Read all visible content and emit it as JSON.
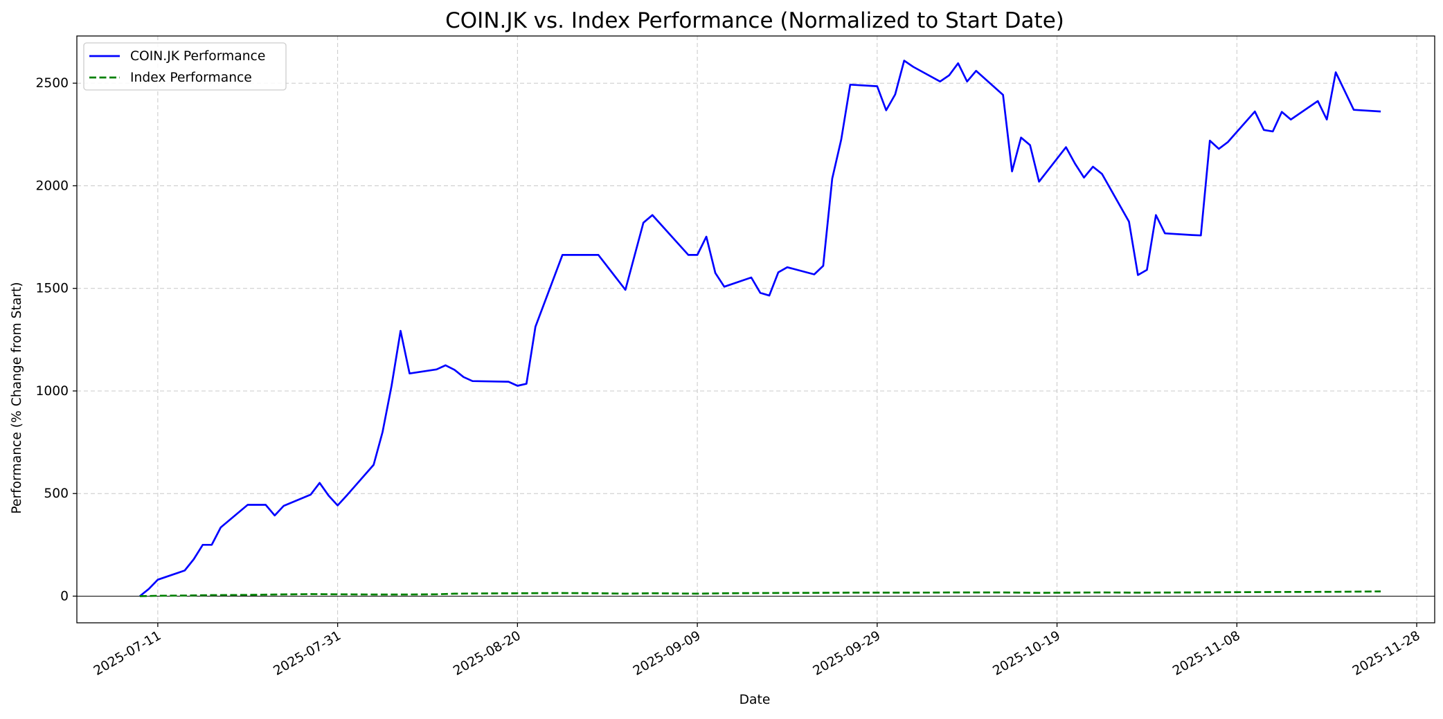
{
  "chart_data": {
    "type": "line",
    "title": "COIN.JK vs. Index Performance (Normalized to Start Date)",
    "xlabel": "Date",
    "ylabel": "Performance (% Change from Start)",
    "xlim": [
      "2025-07-02",
      "2025-11-30"
    ],
    "ylim": [
      -130,
      2730
    ],
    "grid": true,
    "legend": "top-left",
    "x_ticks": [
      "2025-07-11",
      "2025-07-31",
      "2025-08-20",
      "2025-09-09",
      "2025-09-29",
      "2025-10-19",
      "2025-11-08",
      "2025-11-28"
    ],
    "y_ticks": [
      0,
      500,
      1000,
      1500,
      2000,
      2500
    ],
    "y_tick_labels": [
      "0",
      "500",
      "1000",
      "1500",
      "2000",
      "2500"
    ],
    "series": [
      {
        "name": "COIN.JK Performance",
        "color": "#0000ff",
        "style": "solid",
        "points": [
          [
            "2025-07-09",
            0
          ],
          [
            "2025-07-10",
            35
          ],
          [
            "2025-07-11",
            80
          ],
          [
            "2025-07-14",
            125
          ],
          [
            "2025-07-15",
            180
          ],
          [
            "2025-07-16",
            250
          ],
          [
            "2025-07-17",
            250
          ],
          [
            "2025-07-18",
            335
          ],
          [
            "2025-07-21",
            445
          ],
          [
            "2025-07-23",
            445
          ],
          [
            "2025-07-24",
            393
          ],
          [
            "2025-07-25",
            440
          ],
          [
            "2025-07-28",
            495
          ],
          [
            "2025-07-29",
            552
          ],
          [
            "2025-07-30",
            490
          ],
          [
            "2025-07-31",
            442
          ],
          [
            "2025-08-01",
            490
          ],
          [
            "2025-08-04",
            640
          ],
          [
            "2025-08-05",
            800
          ],
          [
            "2025-08-06",
            1025
          ],
          [
            "2025-08-07",
            1293
          ],
          [
            "2025-08-08",
            1085
          ],
          [
            "2025-08-11",
            1105
          ],
          [
            "2025-08-12",
            1125
          ],
          [
            "2025-08-13",
            1103
          ],
          [
            "2025-08-14",
            1068
          ],
          [
            "2025-08-15",
            1048
          ],
          [
            "2025-08-19",
            1045
          ],
          [
            "2025-08-20",
            1025
          ],
          [
            "2025-08-21",
            1035
          ],
          [
            "2025-08-22",
            1313
          ],
          [
            "2025-08-25",
            1663
          ],
          [
            "2025-08-29",
            1663
          ],
          [
            "2025-09-01",
            1493
          ],
          [
            "2025-09-03",
            1820
          ],
          [
            "2025-09-04",
            1857
          ],
          [
            "2025-09-08",
            1663
          ],
          [
            "2025-09-09",
            1663
          ],
          [
            "2025-09-10",
            1752
          ],
          [
            "2025-09-11",
            1575
          ],
          [
            "2025-09-12",
            1508
          ],
          [
            "2025-09-15",
            1553
          ],
          [
            "2025-09-16",
            1478
          ],
          [
            "2025-09-17",
            1465
          ],
          [
            "2025-09-18",
            1578
          ],
          [
            "2025-09-19",
            1603
          ],
          [
            "2025-09-22",
            1568
          ],
          [
            "2025-09-23",
            1610
          ],
          [
            "2025-09-24",
            2035
          ],
          [
            "2025-09-25",
            2225
          ],
          [
            "2025-09-26",
            2493
          ],
          [
            "2025-09-29",
            2485
          ],
          [
            "2025-09-30",
            2368
          ],
          [
            "2025-10-01",
            2445
          ],
          [
            "2025-10-02",
            2610
          ],
          [
            "2025-10-03",
            2580
          ],
          [
            "2025-10-06",
            2508
          ],
          [
            "2025-10-07",
            2538
          ],
          [
            "2025-10-08",
            2597
          ],
          [
            "2025-10-09",
            2508
          ],
          [
            "2025-10-10",
            2560
          ],
          [
            "2025-10-13",
            2443
          ],
          [
            "2025-10-14",
            2070
          ],
          [
            "2025-10-15",
            2235
          ],
          [
            "2025-10-16",
            2198
          ],
          [
            "2025-10-17",
            2020
          ],
          [
            "2025-10-20",
            2188
          ],
          [
            "2025-10-21",
            2108
          ],
          [
            "2025-10-22",
            2040
          ],
          [
            "2025-10-23",
            2093
          ],
          [
            "2025-10-24",
            2058
          ],
          [
            "2025-10-27",
            1825
          ],
          [
            "2025-10-28",
            1565
          ],
          [
            "2025-10-29",
            1590
          ],
          [
            "2025-10-30",
            1857
          ],
          [
            "2025-10-31",
            1768
          ],
          [
            "2025-11-03",
            1760
          ],
          [
            "2025-11-04",
            1758
          ],
          [
            "2025-11-05",
            2220
          ],
          [
            "2025-11-06",
            2180
          ],
          [
            "2025-11-07",
            2213
          ],
          [
            "2025-11-10",
            2362
          ],
          [
            "2025-11-11",
            2272
          ],
          [
            "2025-11-12",
            2265
          ],
          [
            "2025-11-13",
            2360
          ],
          [
            "2025-11-14",
            2323
          ],
          [
            "2025-11-17",
            2413
          ],
          [
            "2025-11-18",
            2323
          ],
          [
            "2025-11-19",
            2553
          ],
          [
            "2025-11-21",
            2370
          ],
          [
            "2025-11-24",
            2362
          ]
        ]
      },
      {
        "name": "Index Performance",
        "color": "#008000",
        "style": "dashed",
        "points": [
          [
            "2025-07-09",
            0
          ],
          [
            "2025-07-11",
            2
          ],
          [
            "2025-07-14",
            3
          ],
          [
            "2025-07-17",
            5
          ],
          [
            "2025-07-21",
            6
          ],
          [
            "2025-07-24",
            8
          ],
          [
            "2025-07-28",
            10
          ],
          [
            "2025-07-31",
            9
          ],
          [
            "2025-08-04",
            8
          ],
          [
            "2025-08-08",
            8
          ],
          [
            "2025-08-11",
            9
          ],
          [
            "2025-08-13",
            12
          ],
          [
            "2025-08-15",
            13
          ],
          [
            "2025-08-20",
            14
          ],
          [
            "2025-08-25",
            15
          ],
          [
            "2025-08-29",
            14
          ],
          [
            "2025-09-01",
            12
          ],
          [
            "2025-09-04",
            14
          ],
          [
            "2025-09-09",
            12
          ],
          [
            "2025-09-12",
            14
          ],
          [
            "2025-09-16",
            15
          ],
          [
            "2025-09-22",
            16
          ],
          [
            "2025-09-26",
            17
          ],
          [
            "2025-09-29",
            17
          ],
          [
            "2025-10-03",
            17
          ],
          [
            "2025-10-08",
            18
          ],
          [
            "2025-10-13",
            18
          ],
          [
            "2025-10-17",
            16
          ],
          [
            "2025-10-20",
            17
          ],
          [
            "2025-10-24",
            18
          ],
          [
            "2025-10-28",
            17
          ],
          [
            "2025-11-03",
            18
          ],
          [
            "2025-11-07",
            19
          ],
          [
            "2025-11-12",
            20
          ],
          [
            "2025-11-19",
            21
          ],
          [
            "2025-11-24",
            23
          ]
        ]
      }
    ]
  }
}
